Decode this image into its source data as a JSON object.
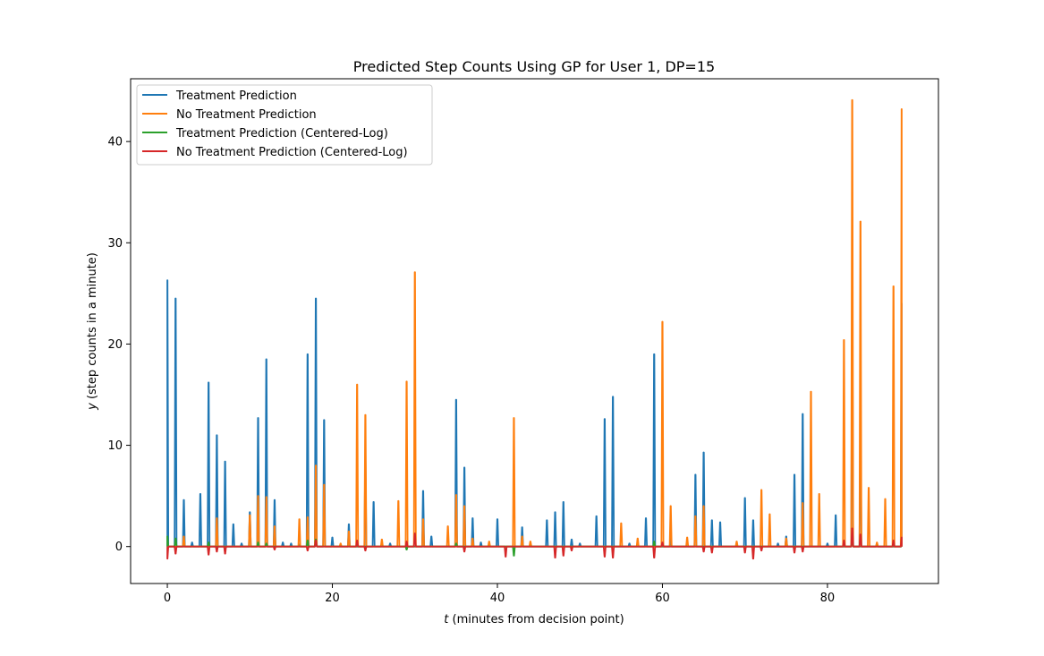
{
  "chart_data": {
    "type": "line",
    "title": "Predicted Step Counts Using GP for User 1, DP=15",
    "xlabel_var": "t",
    "xlabel_rest": " (minutes from decision point)",
    "ylabel_var": "y",
    "ylabel_rest": " (step counts in a minute)",
    "xlim": [
      -4.45,
      93.45
    ],
    "ylim": [
      -3.65,
      46.2
    ],
    "xticks": [
      0,
      20,
      40,
      60,
      80
    ],
    "yticks": [
      0,
      10,
      20,
      30,
      40
    ],
    "grid": false,
    "legend_position": "top-left",
    "series": [
      {
        "name": "Treatment Prediction",
        "color": "#1f77b4",
        "spikes": [
          [
            0,
            26.3
          ],
          [
            1,
            24.5
          ],
          [
            2,
            4.6
          ],
          [
            3,
            0.4
          ],
          [
            4,
            5.2
          ],
          [
            5,
            16.2
          ],
          [
            6,
            11.0
          ],
          [
            7,
            8.4
          ],
          [
            8,
            2.2
          ],
          [
            9,
            0.3
          ],
          [
            10,
            3.4
          ],
          [
            11,
            12.7
          ],
          [
            12,
            18.5
          ],
          [
            13,
            4.6
          ],
          [
            14,
            0.4
          ],
          [
            15,
            0.3
          ],
          [
            16,
            0.2
          ],
          [
            17,
            19.0
          ],
          [
            18,
            24.5
          ],
          [
            19,
            12.5
          ],
          [
            20,
            0.9
          ],
          [
            22,
            2.2
          ],
          [
            24,
            8.5
          ],
          [
            25,
            4.4
          ],
          [
            27,
            0.3
          ],
          [
            31,
            5.5
          ],
          [
            32,
            1.0
          ],
          [
            35,
            14.5
          ],
          [
            36,
            7.8
          ],
          [
            37,
            2.8
          ],
          [
            38,
            0.4
          ],
          [
            40,
            2.7
          ],
          [
            43,
            1.9
          ],
          [
            46,
            2.6
          ],
          [
            47,
            3.4
          ],
          [
            48,
            4.4
          ],
          [
            49,
            0.7
          ],
          [
            50,
            0.3
          ],
          [
            52,
            3.0
          ],
          [
            53,
            12.6
          ],
          [
            54,
            14.8
          ],
          [
            56,
            0.3
          ],
          [
            58,
            2.8
          ],
          [
            59,
            19.0
          ],
          [
            61,
            0.8
          ],
          [
            64,
            7.1
          ],
          [
            65,
            9.3
          ],
          [
            66,
            2.6
          ],
          [
            67,
            2.4
          ],
          [
            70,
            4.8
          ],
          [
            71,
            2.6
          ],
          [
            74,
            0.3
          ],
          [
            75,
            1.0
          ],
          [
            76,
            7.1
          ],
          [
            77,
            13.1
          ],
          [
            80,
            0.3
          ],
          [
            81,
            3.1
          ],
          [
            83,
            24.0
          ],
          [
            84,
            13.0
          ],
          [
            86,
            0.3
          ],
          [
            89,
            24.0
          ]
        ]
      },
      {
        "name": "No Treatment Prediction",
        "color": "#ff7f0e",
        "spikes": [
          [
            2,
            1.0
          ],
          [
            6,
            2.8
          ],
          [
            10,
            3.1
          ],
          [
            11,
            5.0
          ],
          [
            12,
            4.9
          ],
          [
            13,
            2.0
          ],
          [
            16,
            2.7
          ],
          [
            17,
            2.9
          ],
          [
            18,
            8.0
          ],
          [
            19,
            6.1
          ],
          [
            21,
            0.3
          ],
          [
            22,
            1.5
          ],
          [
            23,
            16.0
          ],
          [
            24,
            13.0
          ],
          [
            26,
            0.7
          ],
          [
            28,
            4.5
          ],
          [
            29,
            16.3
          ],
          [
            30,
            27.1
          ],
          [
            31,
            2.7
          ],
          [
            34,
            2.0
          ],
          [
            35,
            5.1
          ],
          [
            36,
            4.0
          ],
          [
            37,
            0.8
          ],
          [
            39,
            0.5
          ],
          [
            42,
            12.7
          ],
          [
            43,
            1.0
          ],
          [
            44,
            0.5
          ],
          [
            55,
            2.3
          ],
          [
            57,
            0.8
          ],
          [
            60,
            22.2
          ],
          [
            61,
            4.0
          ],
          [
            63,
            0.9
          ],
          [
            64,
            3.0
          ],
          [
            65,
            4.0
          ],
          [
            69,
            0.5
          ],
          [
            72,
            5.6
          ],
          [
            73,
            3.2
          ],
          [
            75,
            0.8
          ],
          [
            77,
            4.3
          ],
          [
            78,
            15.3
          ],
          [
            79,
            5.2
          ],
          [
            82,
            20.4
          ],
          [
            83,
            44.1
          ],
          [
            84,
            32.1
          ],
          [
            85,
            5.8
          ],
          [
            86,
            0.4
          ],
          [
            87,
            4.7
          ],
          [
            88,
            25.7
          ],
          [
            89,
            43.2
          ]
        ]
      },
      {
        "name": "Treatment Prediction (Centered-Log)",
        "color": "#2ca02c",
        "spikes": [
          [
            0,
            1.0
          ],
          [
            1,
            0.8
          ],
          [
            5,
            0.4
          ],
          [
            11,
            0.4
          ],
          [
            12,
            0.3
          ],
          [
            17,
            0.6
          ],
          [
            18,
            0.7
          ],
          [
            29,
            -0.3
          ],
          [
            35,
            0.3
          ],
          [
            42,
            -0.9
          ],
          [
            59,
            0.5
          ],
          [
            83,
            0.8
          ]
        ]
      },
      {
        "name": "No Treatment Prediction (Centered-Log)",
        "color": "#d62728",
        "spikes": [
          [
            0,
            -1.2
          ],
          [
            1,
            -0.7
          ],
          [
            5,
            -0.8
          ],
          [
            6,
            -0.5
          ],
          [
            7,
            -0.7
          ],
          [
            13,
            -0.3
          ],
          [
            17,
            -0.4
          ],
          [
            18,
            0.6
          ],
          [
            23,
            0.6
          ],
          [
            24,
            -0.4
          ],
          [
            29,
            0.5
          ],
          [
            30,
            1.3
          ],
          [
            36,
            -0.5
          ],
          [
            41,
            -1.0
          ],
          [
            47,
            -1.1
          ],
          [
            48,
            -0.9
          ],
          [
            49,
            -0.4
          ],
          [
            53,
            -1.0
          ],
          [
            54,
            -1.1
          ],
          [
            59,
            -1.1
          ],
          [
            60,
            0.4
          ],
          [
            65,
            -0.5
          ],
          [
            66,
            -0.6
          ],
          [
            70,
            -0.6
          ],
          [
            71,
            -1.2
          ],
          [
            72,
            -0.4
          ],
          [
            76,
            -0.6
          ],
          [
            77,
            -0.5
          ],
          [
            82,
            0.6
          ],
          [
            83,
            1.8
          ],
          [
            84,
            1.2
          ],
          [
            88,
            0.6
          ],
          [
            89,
            0.9
          ]
        ]
      }
    ]
  }
}
